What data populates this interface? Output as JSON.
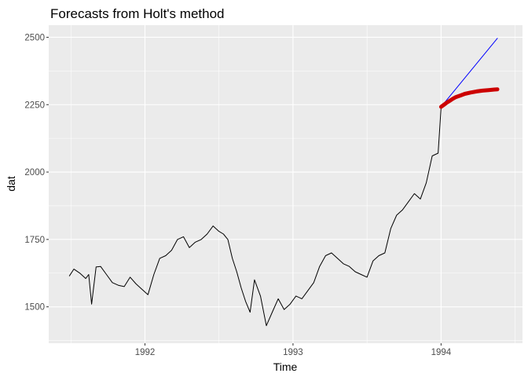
{
  "chart_data": {
    "type": "line",
    "title": "Forecasts from Holt's method",
    "xlabel": "Time",
    "ylabel": "dat",
    "xlim": [
      1991.35,
      1994.55
    ],
    "ylim": [
      1365,
      2545
    ],
    "x_ticks": [
      1992,
      1993,
      1994
    ],
    "x_tick_labels": [
      "1992",
      "1993",
      "1994"
    ],
    "y_ticks": [
      1500,
      1750,
      2000,
      2250,
      2500
    ],
    "y_tick_labels": [
      "1500",
      "1750",
      "2000",
      "2250",
      "2500"
    ],
    "grid": true,
    "legend": "none",
    "series": [
      {
        "color": "#000000",
        "x": [
          1991.49,
          1991.52,
          1991.56,
          1991.6,
          1991.62,
          1991.64,
          1991.67,
          1991.7,
          1991.74,
          1991.78,
          1991.82,
          1991.86,
          1991.9,
          1991.94,
          1991.98,
          1992.02,
          1992.06,
          1992.1,
          1992.14,
          1992.18,
          1992.22,
          1992.26,
          1992.3,
          1992.34,
          1992.38,
          1992.42,
          1992.46,
          1992.5,
          1992.53,
          1992.56,
          1992.59,
          1992.62,
          1992.65,
          1992.68,
          1992.71,
          1992.74,
          1992.78,
          1992.82,
          1992.86,
          1992.9,
          1992.94,
          1992.98,
          1993.02,
          1993.06,
          1993.1,
          1993.14,
          1993.18,
          1993.22,
          1993.26,
          1993.3,
          1993.34,
          1993.38,
          1993.42,
          1993.46,
          1993.5,
          1993.54,
          1993.58,
          1993.62,
          1993.66,
          1993.7,
          1993.74,
          1993.78,
          1993.82,
          1993.86,
          1993.9,
          1993.94,
          1993.98,
          1994.0
        ],
        "values": [
          1615,
          1640,
          1625,
          1605,
          1620,
          1510,
          1648,
          1650,
          1620,
          1590,
          1580,
          1575,
          1610,
          1585,
          1565,
          1545,
          1620,
          1680,
          1690,
          1710,
          1750,
          1760,
          1720,
          1740,
          1750,
          1770,
          1800,
          1780,
          1770,
          1750,
          1680,
          1630,
          1570,
          1520,
          1480,
          1600,
          1540,
          1430,
          1480,
          1530,
          1490,
          1510,
          1540,
          1530,
          1560,
          1590,
          1650,
          1690,
          1700,
          1680,
          1660,
          1650,
          1630,
          1620,
          1610,
          1670,
          1690,
          1700,
          1790,
          1840,
          1860,
          1890,
          1920,
          1900,
          1960,
          2060,
          2070,
          2240
        ]
      },
      {
        "color": "#0000ff",
        "x": [
          1994.0,
          1994.38
        ],
        "values": [
          2242,
          2496
        ]
      },
      {
        "color": "#cc0000",
        "x": [
          1994.0,
          1994.02,
          1994.04,
          1994.06,
          1994.08,
          1994.1,
          1994.13,
          1994.16,
          1994.2,
          1994.24,
          1994.28,
          1994.32,
          1994.36,
          1994.38
        ],
        "values": [
          2242,
          2250,
          2258,
          2265,
          2272,
          2278,
          2284,
          2290,
          2295,
          2299,
          2302,
          2304,
          2306,
          2307
        ]
      }
    ]
  }
}
